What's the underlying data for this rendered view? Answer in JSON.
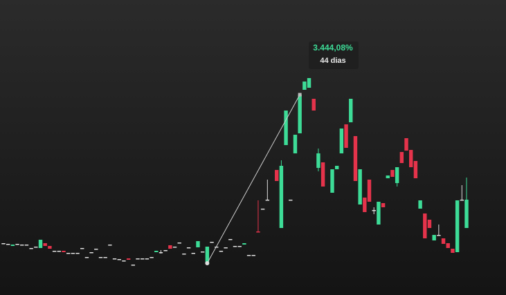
{
  "chart_data": {
    "type": "candlestick",
    "categories": [
      null,
      null,
      null,
      null,
      null,
      null,
      null,
      null,
      null,
      null,
      null,
      null,
      null,
      null,
      null,
      null,
      null,
      null,
      null,
      null,
      null,
      null,
      null,
      null,
      null,
      null,
      null,
      null,
      null,
      null,
      null,
      null,
      null,
      null,
      null,
      null,
      null,
      null,
      null,
      null,
      null,
      null,
      null,
      null,
      null,
      null,
      null,
      null,
      null,
      null,
      null,
      null,
      null,
      null,
      null,
      null,
      null,
      null,
      null,
      null,
      null,
      null,
      null,
      null,
      null,
      null,
      null,
      null,
      null,
      null,
      null,
      null,
      null,
      null,
      null,
      null,
      null,
      null,
      null,
      null,
      null,
      null,
      null,
      null,
      null,
      null,
      null,
      null,
      null,
      null,
      null,
      null,
      null,
      null,
      null,
      null,
      null,
      null,
      null,
      null,
      null
    ],
    "open": [
      75,
      74,
      71,
      74,
      73,
      73,
      68,
      70,
      68,
      75,
      71,
      64,
      64,
      64,
      61,
      61,
      61,
      68,
      55,
      62,
      67,
      55,
      55,
      73,
      53,
      52,
      50,
      53,
      44,
      53,
      53,
      53,
      55,
      62,
      62,
      65,
      72,
      70,
      76,
      60,
      69,
      61,
      69,
      63,
      47,
      77,
      70,
      64,
      69,
      81,
      71,
      71,
      73,
      58,
      58,
      92,
      125,
      138,
      null,
      181,
      97,
      217,
      138,
      205,
      234,
      297,
      300,
      284,
      184,
      192,
      null,
      148,
      182,
      205,
      247,
      250,
      230,
      131,
      141,
      167,
      123,
      102,
      133,
      169,
      181,
      162,
      207,
      227,
      210,
      194,
      125,
      118,
      109,
      79,
      87,
      82,
      75,
      67,
      62,
      138,
      97
    ],
    "high": [
      75,
      74,
      73,
      74,
      73,
      73,
      68,
      70,
      80,
      75,
      71,
      64,
      64,
      64,
      61,
      61,
      61,
      68,
      55,
      62,
      67,
      55,
      55,
      73,
      53,
      52,
      50,
      53,
      44,
      53,
      53,
      53,
      55,
      64,
      65,
      65,
      72,
      70,
      76,
      60,
      69,
      61,
      78,
      63,
      70,
      77,
      70,
      64,
      69,
      81,
      71,
      71,
      75,
      58,
      58,
      137,
      125,
      167,
      null,
      181,
      195,
      267,
      138,
      232,
      290,
      309,
      314,
      284,
      212,
      192,
      null,
      182,
      187,
      241,
      247,
      284,
      230,
      182,
      141,
      167,
      127,
      135,
      133,
      173,
      181,
      185,
      207,
      227,
      210,
      194,
      137,
      118,
      109,
      87,
      102,
      82,
      75,
      67,
      137,
      159,
      170
    ],
    "low": [
      75,
      74,
      71,
      74,
      73,
      73,
      68,
      70,
      68,
      71,
      67,
      64,
      64,
      62,
      61,
      61,
      61,
      68,
      55,
      62,
      67,
      55,
      55,
      73,
      53,
      52,
      50,
      51,
      44,
      53,
      53,
      53,
      55,
      62,
      60,
      65,
      67,
      70,
      76,
      60,
      69,
      61,
      69,
      63,
      46,
      77,
      70,
      64,
      69,
      81,
      71,
      71,
      73,
      58,
      58,
      91,
      125,
      138,
      null,
      165,
      97,
      217,
      138,
      205,
      234,
      297,
      300,
      267,
      179,
      157,
      null,
      148,
      182,
      205,
      213,
      250,
      165,
      131,
      120,
      135,
      117,
      102,
      127,
      169,
      171,
      157,
      191,
      209,
      185,
      169,
      125,
      82,
      97,
      79,
      87,
      74,
      68,
      61,
      62,
      138,
      97
    ],
    "close": [
      75,
      74,
      73,
      74,
      73,
      73,
      68,
      70,
      80,
      71,
      67,
      64,
      64,
      62,
      61,
      61,
      61,
      68,
      55,
      62,
      67,
      55,
      55,
      73,
      53,
      52,
      50,
      51,
      44,
      53,
      53,
      53,
      55,
      64,
      62,
      65,
      67,
      70,
      76,
      60,
      69,
      61,
      78,
      63,
      70,
      77,
      70,
      64,
      69,
      81,
      71,
      71,
      75,
      58,
      58,
      91,
      125,
      138,
      null,
      165,
      187,
      267,
      138,
      232,
      290,
      309,
      314,
      267,
      205,
      157,
      null,
      182,
      187,
      241,
      213,
      284,
      165,
      182,
      120,
      135,
      123,
      135,
      127,
      173,
      171,
      185,
      191,
      209,
      185,
      169,
      137,
      82,
      97,
      87,
      87,
      74,
      68,
      61,
      137,
      138,
      138
    ],
    "ylim": [
      0,
      427
    ],
    "up_color": "#3ddc97",
    "down_color": "#e5334b",
    "flat_color": "#e0e0e0",
    "annotation": {
      "label": "3.444,08%",
      "sublabel": "44 dias",
      "color": "#3ddc97"
    }
  }
}
